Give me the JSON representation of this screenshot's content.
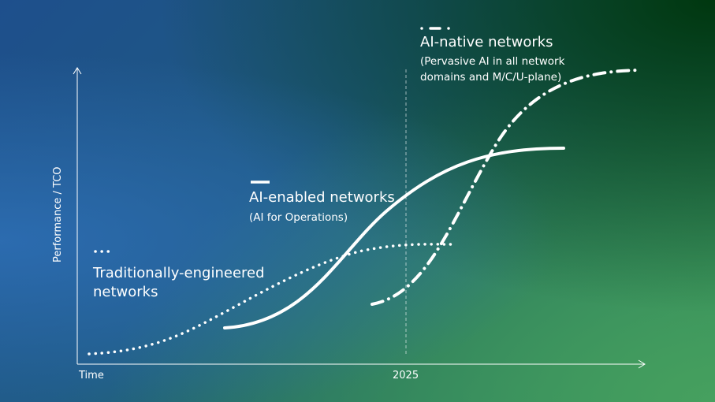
{
  "axes": {
    "y_label": "Performance / TCO",
    "x_label": "Time",
    "x_marker": "2025"
  },
  "series": [
    {
      "id": "traditional",
      "style": "dotted",
      "title": "Traditionally-engineered",
      "title_line2": "networks"
    },
    {
      "id": "ai-enabled",
      "style": "solid",
      "title": "AI-enabled networks",
      "subtitle": "(AI for Operations)"
    },
    {
      "id": "ai-native",
      "style": "dash-dot",
      "title": "AI-native networks",
      "subtitle": "(Pervasive AI in all network",
      "subtitle_line2": "domains and M/C/U-plane)"
    }
  ],
  "colors": {
    "line": "#ffffff",
    "bg_blue": "#2a6aad",
    "bg_dark_green": "#003a10",
    "bg_green": "#40a060"
  }
}
